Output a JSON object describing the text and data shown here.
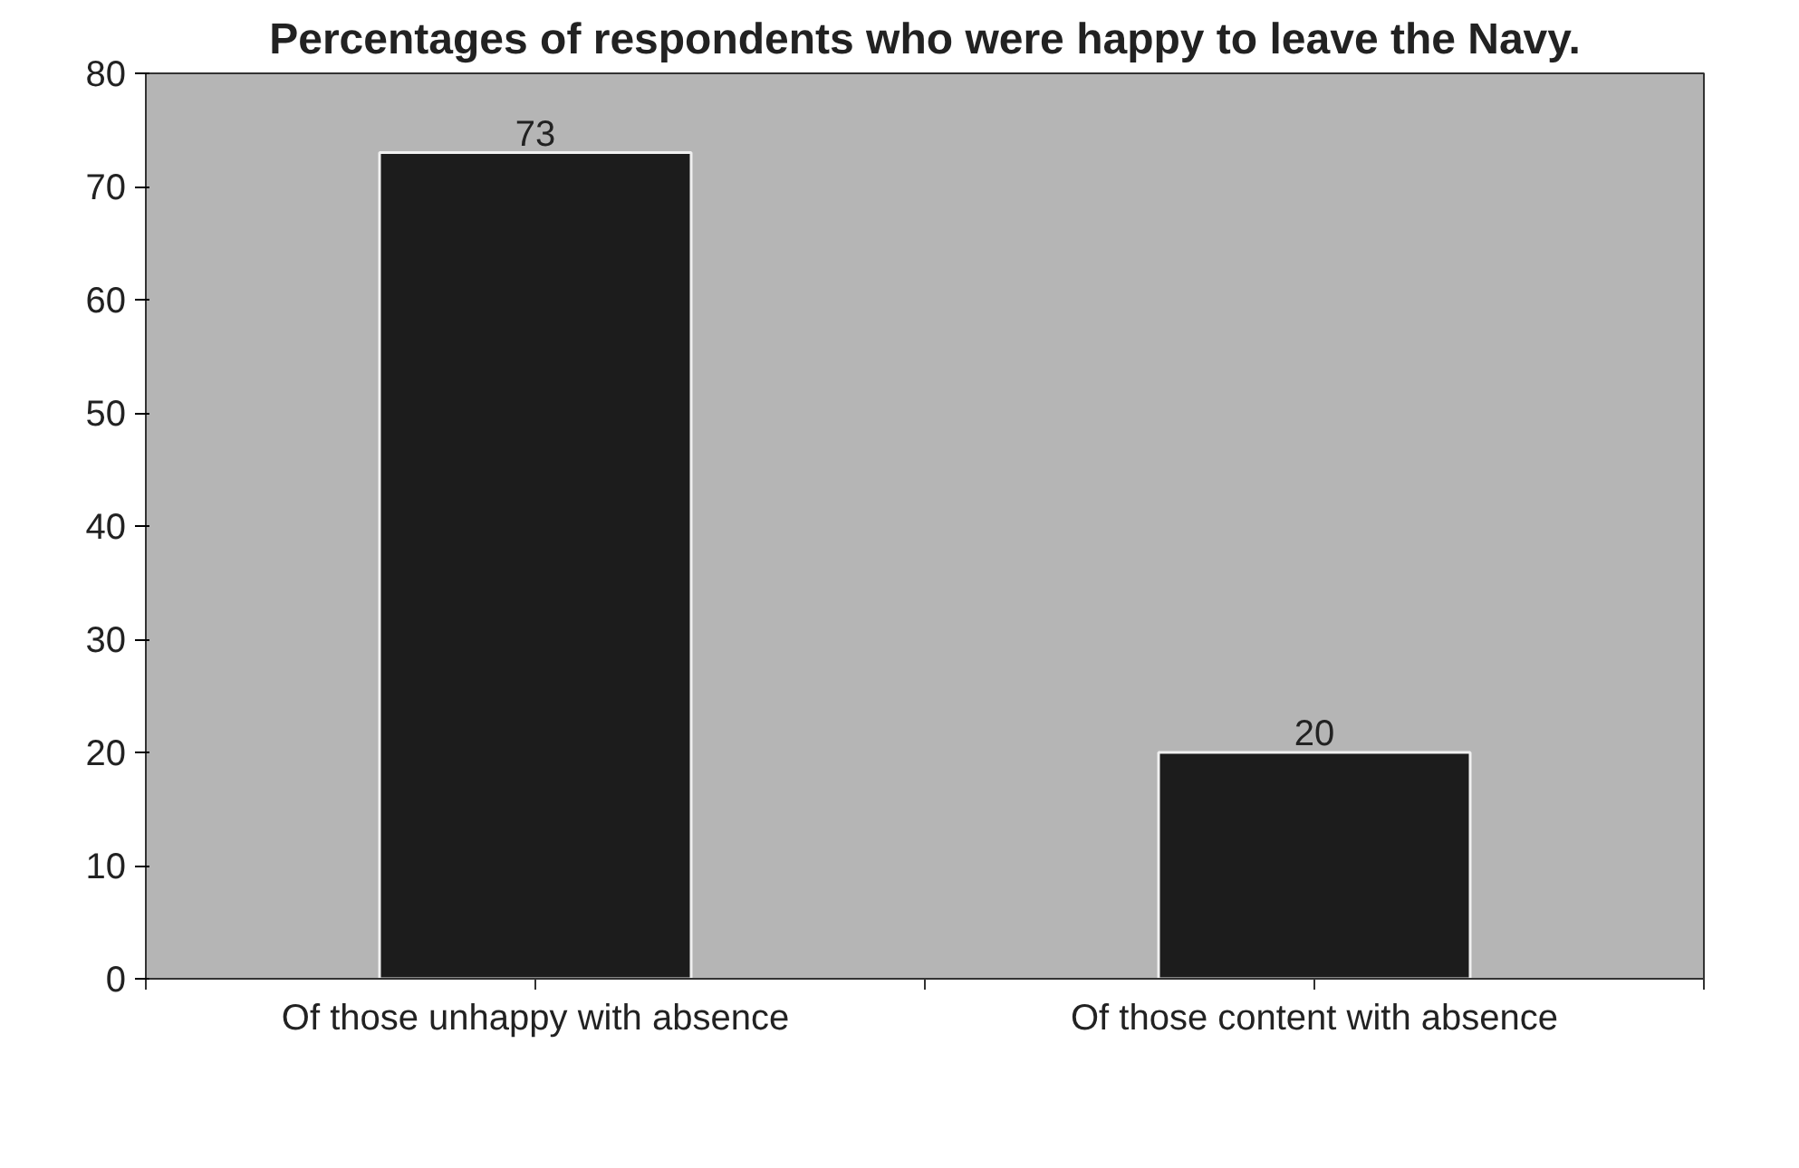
{
  "chart_data": {
    "type": "bar",
    "title": "Percentages of respondents who were happy to leave the Navy.",
    "categories": [
      "Of those unhappy with absence",
      "Of those content with absence"
    ],
    "values": [
      73,
      20
    ],
    "color": "#1c1c1c",
    "ylim": [
      0,
      80
    ],
    "yticks": [
      0,
      10,
      20,
      30,
      40,
      50,
      60,
      70,
      80
    ],
    "grid": false,
    "data_labels": true
  }
}
